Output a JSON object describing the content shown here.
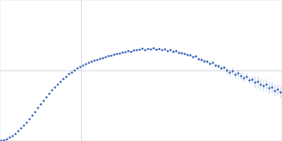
{
  "chart_data": {
    "type": "scatter",
    "x": [
      0.002,
      0.006,
      0.01,
      0.014,
      0.018,
      0.022,
      0.026,
      0.03,
      0.034,
      0.038,
      0.042,
      0.046,
      0.05,
      0.054,
      0.058,
      0.062,
      0.066,
      0.07,
      0.074,
      0.078,
      0.082,
      0.086,
      0.09,
      0.094,
      0.098,
      0.102,
      0.106,
      0.11,
      0.114,
      0.118,
      0.122,
      0.126,
      0.13,
      0.134,
      0.138,
      0.142,
      0.146,
      0.15,
      0.154,
      0.158,
      0.162,
      0.166,
      0.17,
      0.174,
      0.178,
      0.182,
      0.186,
      0.19,
      0.194,
      0.198,
      0.202,
      0.206,
      0.21,
      0.214,
      0.218,
      0.222,
      0.226,
      0.23,
      0.234,
      0.238,
      0.242,
      0.246,
      0.25,
      0.254,
      0.258,
      0.262,
      0.266,
      0.27,
      0.274,
      0.278,
      0.282,
      0.286,
      0.29,
      0.294,
      0.298,
      0.302,
      0.306,
      0.31,
      0.314,
      0.318,
      0.322,
      0.326,
      0.33,
      0.334,
      0.338,
      0.342,
      0.346,
      0.35,
      0.354,
      0.358,
      0.362,
      0.366,
      0.37,
      0.374,
      0.378,
      0.382,
      0.386,
      0.39,
      0.394,
      0.398
    ],
    "values": [
      0.005,
      0.01,
      0.025,
      0.05,
      0.07,
      0.1,
      0.14,
      0.18,
      0.22,
      0.26,
      0.31,
      0.36,
      0.41,
      0.47,
      0.52,
      0.57,
      0.62,
      0.67,
      0.72,
      0.76,
      0.8,
      0.84,
      0.88,
      0.91,
      0.95,
      0.97,
      1.0,
      1.03,
      1.05,
      1.07,
      1.09,
      1.11,
      1.125,
      1.14,
      1.15,
      1.165,
      1.175,
      1.19,
      1.205,
      1.21,
      1.225,
      1.235,
      1.24,
      1.255,
      1.26,
      1.275,
      1.265,
      1.285,
      1.29,
      1.295,
      1.31,
      1.29,
      1.305,
      1.3,
      1.315,
      1.295,
      1.305,
      1.29,
      1.3,
      1.275,
      1.29,
      1.265,
      1.275,
      1.25,
      1.245,
      1.235,
      1.22,
      1.215,
      1.19,
      1.2,
      1.16,
      1.15,
      1.13,
      1.125,
      1.095,
      1.11,
      1.07,
      1.06,
      1.03,
      1.04,
      1.0,
      0.97,
      0.99,
      0.94,
      0.96,
      0.92,
      0.89,
      0.91,
      0.86,
      0.87,
      0.83,
      0.84,
      0.8,
      0.78,
      0.8,
      0.75,
      0.76,
      0.71,
      0.73,
      0.69
    ],
    "errors": [
      0.002,
      0.002,
      0.002,
      0.002,
      0.002,
      0.002,
      0.002,
      0.002,
      0.002,
      0.002,
      0.003,
      0.003,
      0.003,
      0.003,
      0.003,
      0.003,
      0.003,
      0.003,
      0.003,
      0.003,
      0.004,
      0.004,
      0.004,
      0.004,
      0.004,
      0.004,
      0.004,
      0.004,
      0.004,
      0.004,
      0.005,
      0.005,
      0.005,
      0.005,
      0.005,
      0.005,
      0.005,
      0.005,
      0.005,
      0.005,
      0.008,
      0.008,
      0.008,
      0.008,
      0.008,
      0.008,
      0.008,
      0.008,
      0.008,
      0.008,
      0.012,
      0.012,
      0.012,
      0.012,
      0.012,
      0.012,
      0.012,
      0.012,
      0.012,
      0.012,
      0.02,
      0.02,
      0.02,
      0.02,
      0.02,
      0.02,
      0.02,
      0.02,
      0.02,
      0.02,
      0.03,
      0.03,
      0.03,
      0.03,
      0.03,
      0.03,
      0.03,
      0.03,
      0.03,
      0.03,
      0.05,
      0.05,
      0.05,
      0.05,
      0.05,
      0.05,
      0.05,
      0.05,
      0.05,
      0.05,
      0.08,
      0.08,
      0.08,
      0.08,
      0.08,
      0.08,
      0.08,
      0.08,
      0.08,
      0.08
    ],
    "color": "#3563b8",
    "marker": "circle",
    "xlim": [
      0,
      0.4
    ],
    "ylim": [
      0,
      2
    ],
    "xticks": [
      0.115
    ],
    "yticks": [
      1
    ],
    "grid": true,
    "tick_labels": false
  }
}
